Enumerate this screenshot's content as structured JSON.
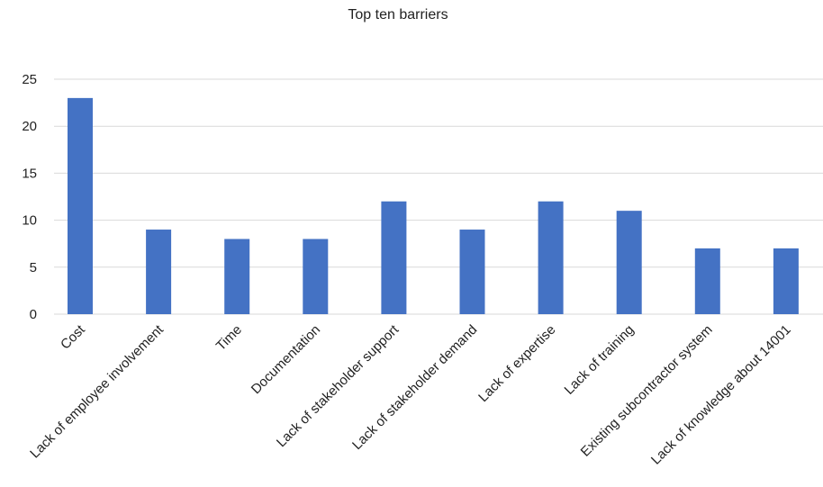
{
  "chart_data": {
    "type": "bar",
    "title": "Top ten barriers",
    "categories": [
      "Cost",
      "Lack of employee involvement",
      "Time",
      "Documentation",
      "Lack of stakeholder support",
      "Lack of stakeholder demand",
      "Lack of expertise",
      "Lack of training",
      "Existing subcontractor system",
      "Lack of knowledge about 14001"
    ],
    "values": [
      23,
      9,
      8,
      8,
      12,
      9,
      12,
      11,
      7,
      7
    ],
    "ylim": [
      0,
      25
    ],
    "yticks": [
      "0",
      "5",
      "10",
      "15",
      "20",
      "25"
    ],
    "grid": true,
    "legend": "none",
    "bar_color": "#4472C4",
    "grid_color": "#D9D9D9"
  }
}
